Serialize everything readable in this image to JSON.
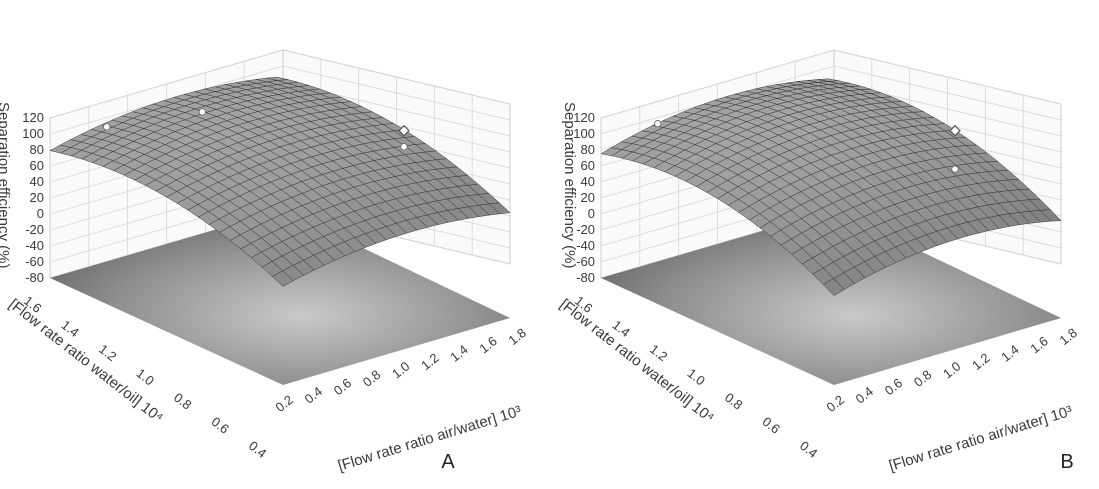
{
  "chart_data": [
    {
      "type": "surface",
      "panel_label": "A",
      "zlabel": "Separation efficiency (%)",
      "xlabel": "[Flow rate ratio water/oil] 10⁴",
      "ylabel": "[Flow rate ratio air/water] 10³",
      "zticks": [
        "120",
        "100",
        "80",
        "60",
        "40",
        "20",
        "0",
        "-20",
        "-40",
        "-60",
        "-80"
      ],
      "xticks": [
        "1.6",
        "1.4",
        "1.2",
        "1.0",
        "0.8",
        "0.6",
        "0.4"
      ],
      "yticks": [
        "0.2",
        "0.4",
        "0.6",
        "0.8",
        "1.0",
        "1.2",
        "1.4",
        "1.6",
        "1.8"
      ],
      "xlim": [
        0.4,
        1.6
      ],
      "ylim": [
        0.2,
        1.8
      ],
      "zlim": [
        -80,
        120
      ],
      "surface": {
        "peak": 112,
        "peak_x": 1.2,
        "peak_y": 1.1,
        "corner_low": -20
      },
      "points": [
        {
          "x": 0.8,
          "y": 1.6,
          "z": 100,
          "marker": "dot"
        },
        {
          "x": 1.4,
          "y": 1.0,
          "z": 108,
          "marker": "dot"
        },
        {
          "x": 1.6,
          "y": 0.6,
          "z": 88,
          "marker": "dot"
        },
        {
          "x": 0.8,
          "y": 1.6,
          "z": 120,
          "marker": "diamond"
        }
      ],
      "grid": true
    },
    {
      "type": "surface",
      "panel_label": "B",
      "zlabel": "Separation efficiency (%)",
      "xlabel": "[Flow rate ratio water/oil] 10⁴",
      "ylabel": "[Flow rate ratio air/water] 10³",
      "zticks": [
        "120",
        "100",
        "80",
        "60",
        "40",
        "20",
        "0",
        "-20",
        "-40",
        "-60",
        "-80"
      ],
      "xticks": [
        "1.6",
        "1.4",
        "1.2",
        "1.0",
        "0.8",
        "0.6",
        "0.4"
      ],
      "yticks": [
        "0.2",
        "0.4",
        "0.6",
        "0.8",
        "1.0",
        "1.2",
        "1.4",
        "1.6",
        "1.8"
      ],
      "xlim": [
        0.4,
        1.6
      ],
      "ylim": [
        0.2,
        1.8
      ],
      "zlim": [
        -80,
        120
      ],
      "surface": {
        "peak": 115,
        "peak_x": 1.2,
        "peak_y": 1.1,
        "corner_low": -45
      },
      "points": [
        {
          "x": 1.6,
          "y": 0.6,
          "z": 92,
          "marker": "dot"
        },
        {
          "x": 0.8,
          "y": 1.6,
          "z": 72,
          "marker": "dot"
        },
        {
          "x": 0.8,
          "y": 1.6,
          "z": 120,
          "marker": "diamond"
        }
      ],
      "grid": true
    }
  ]
}
